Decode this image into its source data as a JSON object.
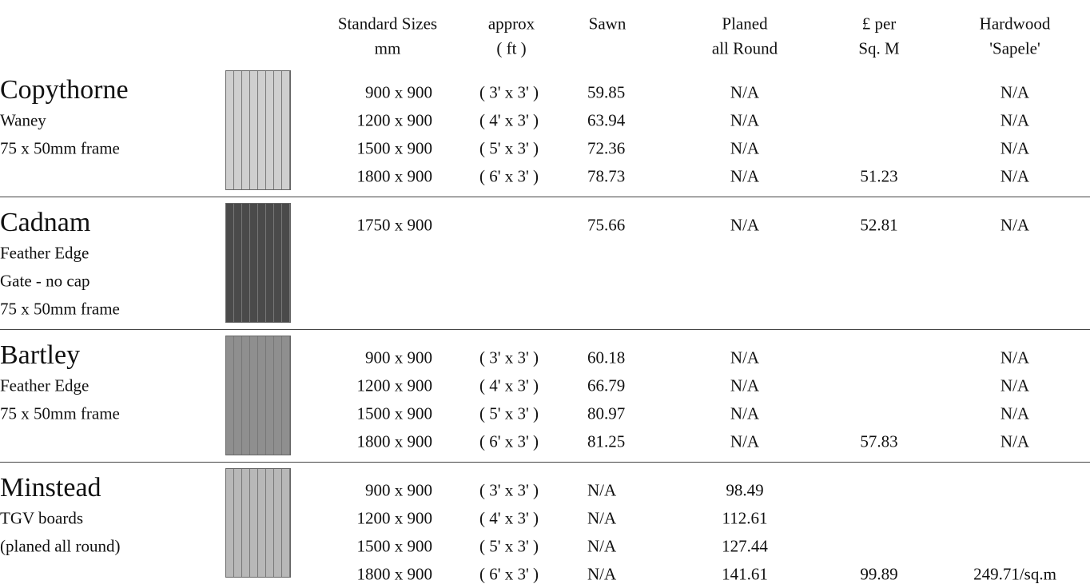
{
  "table": {
    "headers": [
      [
        "Standard Sizes",
        "mm"
      ],
      [
        "approx",
        "( ft )"
      ],
      [
        "Sawn"
      ],
      [
        "Planed",
        "all Round"
      ],
      [
        "£ per",
        "Sq. M"
      ],
      [
        "Hardwood",
        "'Sapele'"
      ]
    ],
    "groups": [
      {
        "name": "Copythorne",
        "description": [
          "Waney",
          "75 x 50mm frame"
        ],
        "rows": [
          [
            "900 x 900",
            "( 3' x 3' )",
            "59.85",
            "N/A",
            null,
            "N/A"
          ],
          [
            "1200 x 900",
            "( 4' x 3' )",
            "63.94",
            "N/A",
            null,
            "N/A"
          ],
          [
            "1500 x 900",
            "( 5' x 3' )",
            "72.36",
            "N/A",
            null,
            "N/A"
          ],
          [
            "1800 x 900",
            "( 6' x 3' )",
            "78.73",
            "N/A",
            "51.23",
            "N/A"
          ]
        ]
      },
      {
        "name": "Cadnam",
        "description": [
          "Feather Edge",
          "Gate - no cap",
          "75 x 50mm frame"
        ],
        "rows": [
          [
            "1750 x 900",
            null,
            "75.66",
            "N/A",
            "52.81",
            "N/A"
          ]
        ]
      },
      {
        "name": "Bartley",
        "description": [
          "Feather Edge",
          "75 x 50mm frame"
        ],
        "rows": [
          [
            "900 x 900",
            "( 3' x 3' )",
            "60.18",
            "N/A",
            null,
            "N/A"
          ],
          [
            "1200 x 900",
            "( 4' x 3' )",
            "66.79",
            "N/A",
            null,
            "N/A"
          ],
          [
            "1500 x 900",
            "( 5' x 3' )",
            "80.97",
            "N/A",
            null,
            "N/A"
          ],
          [
            "1800 x 900",
            "( 6' x 3' )",
            "81.25",
            "N/A",
            "57.83",
            "N/A"
          ]
        ]
      },
      {
        "name": "Minstead",
        "description": [
          "TGV boards",
          "(planed all round)"
        ],
        "rows": [
          [
            "900 x 900",
            "( 3' x 3' )",
            "N/A",
            "98.49",
            null,
            null
          ],
          [
            "1200 x 900",
            "( 4' x 3' )",
            "N/A",
            "112.61",
            null,
            null
          ],
          [
            "1500 x 900",
            "( 5' x 3' )",
            "N/A",
            "127.44",
            null,
            null
          ],
          [
            "1800 x 900",
            "( 6' x 3' )",
            "N/A",
            "141.61",
            "99.89",
            "249.71/sq.m"
          ]
        ]
      }
    ]
  }
}
